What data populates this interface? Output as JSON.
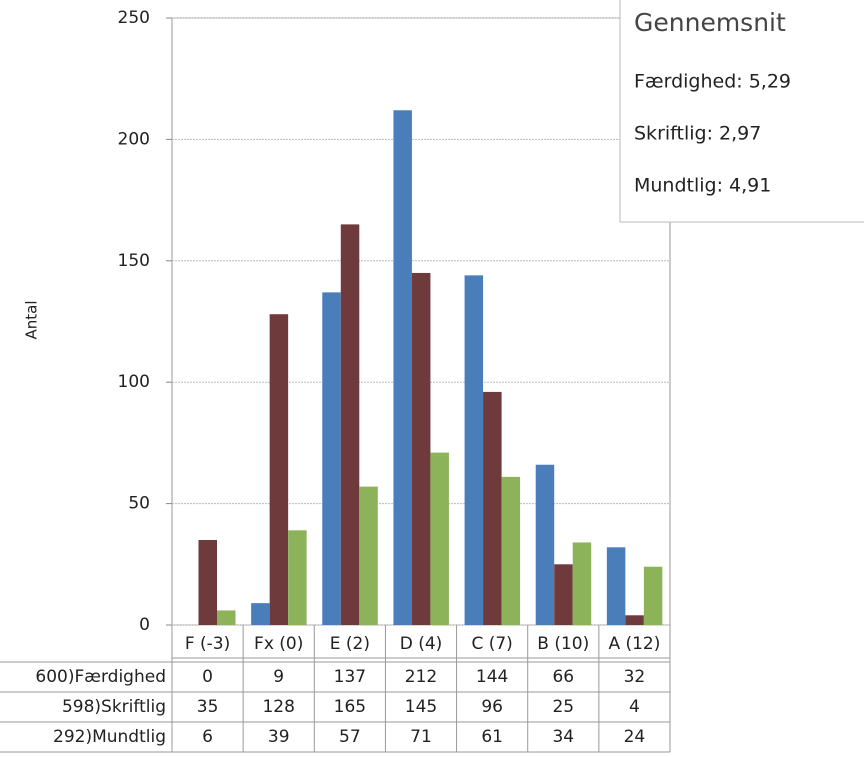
{
  "chart_data": {
    "type": "bar",
    "y_label": "Antal",
    "categories": [
      "F (-3)",
      "Fx (0)",
      "E (2)",
      "D (4)",
      "C (7)",
      "B (10)",
      "A (12)"
    ],
    "series": [
      {
        "name": "600)Færdighed",
        "color": "#4a7ebb",
        "values": [
          0,
          9,
          137,
          212,
          144,
          66,
          32
        ]
      },
      {
        "name": "598)Skriftlig",
        "color": "#6f3a3c",
        "values": [
          35,
          128,
          165,
          145,
          96,
          25,
          4
        ]
      },
      {
        "name": "292)Mundtlig",
        "color": "#8db35a",
        "values": [
          6,
          39,
          57,
          71,
          61,
          34,
          24
        ]
      }
    ],
    "ylim": [
      0,
      250
    ],
    "yticks": [
      0,
      50,
      100,
      150,
      200,
      250
    ],
    "grid": true,
    "legend_box": {
      "title": "Gennemsnit",
      "items": [
        "Færdighed: 5,29",
        "Skriftlig: 2,97",
        "Mundtlig: 4,91"
      ]
    }
  }
}
